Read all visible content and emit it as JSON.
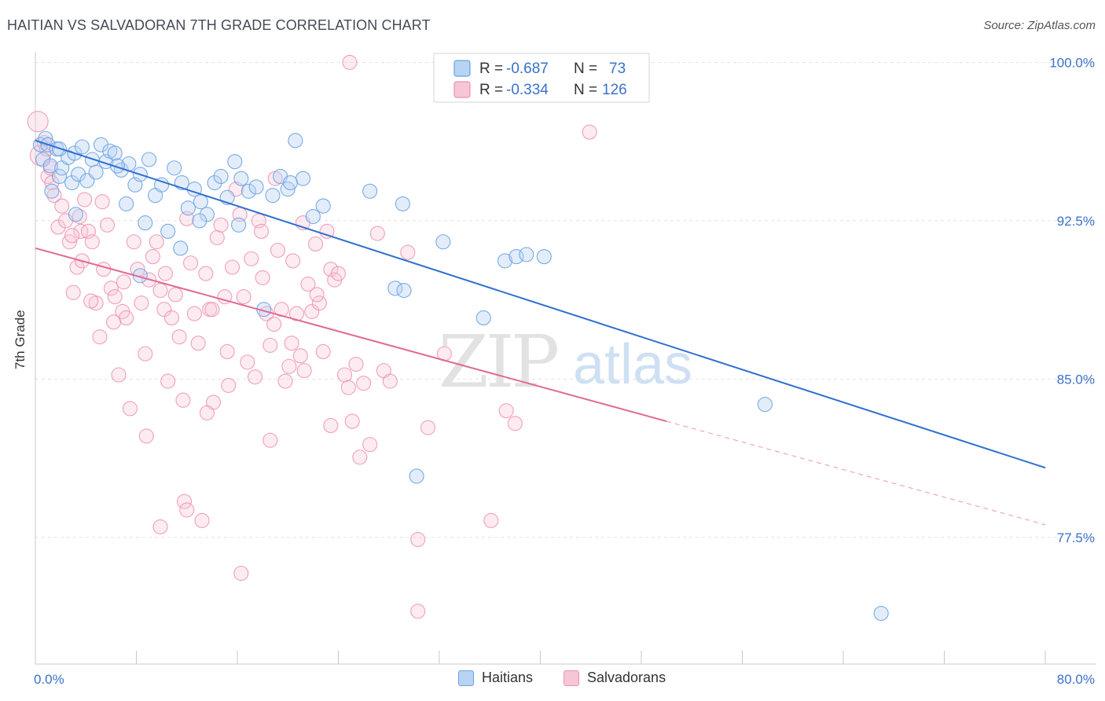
{
  "title": "HAITIAN VS SALVADORAN 7TH GRADE CORRELATION CHART",
  "source": "Source: ZipAtlas.com",
  "watermark": {
    "zip": "ZIP",
    "atlas": "atlas"
  },
  "colors": {
    "blue": "#6aa3e3",
    "blue_fill": "#b8d3f3",
    "blue_line": "#2f6fd0",
    "pink": "#ee8fb0",
    "pink_fill": "#f7c6d6",
    "pink_line": "#e06a94",
    "axis_text": "#3a72c8"
  },
  "legend": {
    "rows": [
      {
        "r_label": "R =",
        "r_value": "-0.687",
        "n_label": "N =",
        "n_value": "73"
      },
      {
        "r_label": "R =",
        "r_value": "-0.334",
        "n_label": "N =",
        "n_value": "126"
      }
    ]
  },
  "bottom_legend": {
    "haitians": "Haitians",
    "salvadorans": "Salvadorans"
  },
  "chart_data": {
    "type": "scatter",
    "title": "HAITIAN VS SALVADORAN 7TH GRADE CORRELATION CHART",
    "xlabel": "",
    "ylabel": "7th Grade",
    "xlim": [
      0,
      80
    ],
    "ylim": [
      71.5,
      100.5
    ],
    "x_tick_labels": [
      "0.0%",
      "80.0%"
    ],
    "y_ticks": [
      77.5,
      85.0,
      92.5,
      100.0
    ],
    "y_tick_labels": [
      "77.5%",
      "85.0%",
      "92.5%",
      "100.0%"
    ],
    "grid": true,
    "series": [
      {
        "name": "Haitians",
        "r": -0.687,
        "n": 73,
        "trend": {
          "x": [
            0,
            80
          ],
          "y": [
            96.3,
            80.8
          ]
        },
        "points": [
          [
            0.4,
            96.1
          ],
          [
            0.6,
            95.4
          ],
          [
            0.8,
            96.4
          ],
          [
            1.0,
            96.1
          ],
          [
            1.2,
            95.1
          ],
          [
            1.3,
            93.9
          ],
          [
            1.7,
            95.9
          ],
          [
            1.9,
            94.6
          ],
          [
            2.1,
            95.0
          ],
          [
            2.6,
            95.5
          ],
          [
            2.9,
            94.3
          ],
          [
            3.1,
            95.7
          ],
          [
            3.4,
            94.7
          ],
          [
            3.7,
            96.0
          ],
          [
            4.1,
            94.4
          ],
          [
            4.5,
            95.4
          ],
          [
            4.8,
            94.8
          ],
          [
            5.2,
            96.1
          ],
          [
            5.6,
            95.3
          ],
          [
            5.9,
            95.8
          ],
          [
            6.3,
            95.7
          ],
          [
            6.8,
            94.9
          ],
          [
            7.2,
            93.3
          ],
          [
            7.4,
            95.2
          ],
          [
            7.9,
            94.2
          ],
          [
            8.3,
            94.7
          ],
          [
            8.7,
            92.4
          ],
          [
            9.0,
            95.4
          ],
          [
            9.5,
            93.7
          ],
          [
            10.0,
            94.2
          ],
          [
            10.5,
            92.0
          ],
          [
            11.0,
            95.0
          ],
          [
            11.6,
            94.3
          ],
          [
            12.1,
            93.1
          ],
          [
            12.6,
            94.0
          ],
          [
            13.1,
            93.4
          ],
          [
            13.6,
            92.8
          ],
          [
            14.2,
            94.3
          ],
          [
            14.7,
            94.6
          ],
          [
            15.2,
            93.6
          ],
          [
            15.8,
            95.3
          ],
          [
            16.3,
            94.5
          ],
          [
            16.9,
            93.9
          ],
          [
            17.5,
            94.1
          ],
          [
            18.1,
            88.3
          ],
          [
            18.8,
            93.7
          ],
          [
            19.4,
            94.6
          ],
          [
            20.0,
            94.0
          ],
          [
            20.6,
            96.3
          ],
          [
            21.2,
            94.5
          ],
          [
            22.0,
            92.7
          ],
          [
            22.8,
            93.2
          ],
          [
            26.5,
            93.9
          ],
          [
            29.1,
            93.3
          ],
          [
            28.5,
            89.3
          ],
          [
            29.2,
            89.2
          ],
          [
            30.2,
            80.4
          ],
          [
            32.3,
            91.5
          ],
          [
            35.5,
            87.9
          ],
          [
            37.2,
            90.6
          ],
          [
            38.1,
            90.8
          ],
          [
            38.9,
            90.9
          ],
          [
            40.3,
            90.8
          ],
          [
            57.8,
            83.8
          ],
          [
            67.0,
            73.9
          ],
          [
            11.5,
            91.2
          ],
          [
            8.3,
            89.9
          ],
          [
            16.1,
            92.3
          ],
          [
            13.0,
            92.5
          ],
          [
            6.5,
            95.1
          ],
          [
            3.2,
            92.8
          ],
          [
            1.9,
            95.9
          ],
          [
            20.2,
            94.3
          ]
        ]
      },
      {
        "name": "Salvadorans",
        "r": -0.334,
        "n": 126,
        "trend": {
          "x": [
            0,
            50
          ],
          "y": [
            91.2,
            83.0
          ]
        },
        "trend_dashed": {
          "x": [
            50,
            80
          ],
          "y": [
            83.0,
            78.1
          ]
        },
        "points": [
          [
            0.2,
            97.2
          ],
          [
            0.4,
            95.6
          ],
          [
            0.7,
            96.2
          ],
          [
            1.0,
            94.6
          ],
          [
            1.2,
            95.0
          ],
          [
            1.5,
            93.7
          ],
          [
            1.8,
            92.2
          ],
          [
            2.1,
            93.2
          ],
          [
            2.4,
            92.5
          ],
          [
            2.7,
            91.5
          ],
          [
            3.0,
            89.1
          ],
          [
            3.3,
            90.3
          ],
          [
            3.6,
            92.0
          ],
          [
            3.9,
            93.5
          ],
          [
            4.2,
            92.0
          ],
          [
            4.5,
            91.5
          ],
          [
            4.8,
            88.6
          ],
          [
            5.1,
            87.0
          ],
          [
            5.4,
            90.2
          ],
          [
            5.7,
            92.3
          ],
          [
            6.0,
            89.3
          ],
          [
            6.3,
            88.9
          ],
          [
            6.6,
            85.2
          ],
          [
            6.9,
            88.2
          ],
          [
            7.2,
            87.9
          ],
          [
            7.5,
            83.6
          ],
          [
            7.8,
            91.5
          ],
          [
            8.1,
            90.2
          ],
          [
            8.4,
            88.6
          ],
          [
            8.7,
            86.2
          ],
          [
            9.0,
            89.7
          ],
          [
            9.3,
            90.8
          ],
          [
            9.6,
            91.5
          ],
          [
            9.9,
            89.2
          ],
          [
            10.2,
            88.3
          ],
          [
            10.5,
            84.9
          ],
          [
            10.8,
            87.9
          ],
          [
            11.1,
            89.0
          ],
          [
            11.4,
            87.0
          ],
          [
            11.7,
            84.0
          ],
          [
            12.0,
            92.6
          ],
          [
            12.3,
            90.5
          ],
          [
            12.6,
            88.1
          ],
          [
            12.9,
            86.7
          ],
          [
            13.2,
            78.3
          ],
          [
            13.5,
            90.0
          ],
          [
            13.8,
            88.3
          ],
          [
            14.1,
            83.9
          ],
          [
            14.4,
            91.7
          ],
          [
            14.7,
            92.3
          ],
          [
            15.0,
            88.9
          ],
          [
            15.3,
            84.7
          ],
          [
            15.6,
            90.3
          ],
          [
            15.9,
            94.0
          ],
          [
            16.2,
            92.8
          ],
          [
            16.5,
            88.9
          ],
          [
            16.8,
            85.8
          ],
          [
            17.1,
            90.7
          ],
          [
            17.4,
            85.1
          ],
          [
            17.7,
            92.5
          ],
          [
            18.0,
            89.8
          ],
          [
            18.3,
            88.1
          ],
          [
            18.6,
            86.6
          ],
          [
            18.9,
            87.6
          ],
          [
            19.2,
            91.1
          ],
          [
            19.5,
            88.3
          ],
          [
            19.8,
            84.9
          ],
          [
            20.1,
            85.6
          ],
          [
            20.4,
            90.6
          ],
          [
            20.7,
            88.1
          ],
          [
            21.0,
            86.1
          ],
          [
            21.3,
            85.4
          ],
          [
            21.6,
            89.5
          ],
          [
            21.9,
            88.2
          ],
          [
            22.2,
            91.4
          ],
          [
            22.5,
            88.6
          ],
          [
            22.8,
            86.3
          ],
          [
            23.1,
            92.0
          ],
          [
            23.4,
            90.2
          ],
          [
            23.7,
            89.7
          ],
          [
            24.0,
            90.0
          ],
          [
            24.5,
            85.2
          ],
          [
            24.8,
            84.6
          ],
          [
            25.1,
            83.0
          ],
          [
            25.4,
            85.7
          ],
          [
            25.7,
            81.3
          ],
          [
            26.0,
            84.8
          ],
          [
            26.5,
            81.9
          ],
          [
            27.1,
            91.9
          ],
          [
            27.6,
            85.4
          ],
          [
            28.1,
            84.9
          ],
          [
            29.5,
            91.0
          ],
          [
            30.3,
            77.4
          ],
          [
            30.3,
            74.0
          ],
          [
            31.1,
            82.7
          ],
          [
            32.4,
            86.2
          ],
          [
            36.1,
            78.3
          ],
          [
            37.3,
            83.5
          ],
          [
            38.0,
            82.9
          ],
          [
            43.9,
            96.7
          ],
          [
            24.9,
            100.0
          ],
          [
            23.4,
            82.8
          ],
          [
            19.0,
            94.5
          ],
          [
            21.2,
            92.4
          ],
          [
            9.9,
            78.0
          ],
          [
            11.8,
            79.2
          ],
          [
            16.3,
            75.8
          ],
          [
            8.8,
            82.3
          ],
          [
            12.0,
            78.8
          ],
          [
            5.3,
            93.4
          ],
          [
            2.9,
            91.8
          ],
          [
            4.4,
            88.7
          ],
          [
            3.7,
            90.6
          ],
          [
            1.3,
            94.3
          ],
          [
            6.2,
            87.7
          ],
          [
            7.0,
            89.6
          ],
          [
            10.3,
            90.0
          ],
          [
            14.0,
            88.3
          ],
          [
            15.2,
            86.3
          ],
          [
            17.9,
            92.0
          ],
          [
            20.3,
            86.7
          ],
          [
            22.3,
            89.0
          ],
          [
            13.6,
            83.4
          ],
          [
            18.6,
            82.1
          ],
          [
            0.9,
            95.9
          ],
          [
            3.5,
            92.7
          ]
        ]
      }
    ]
  }
}
